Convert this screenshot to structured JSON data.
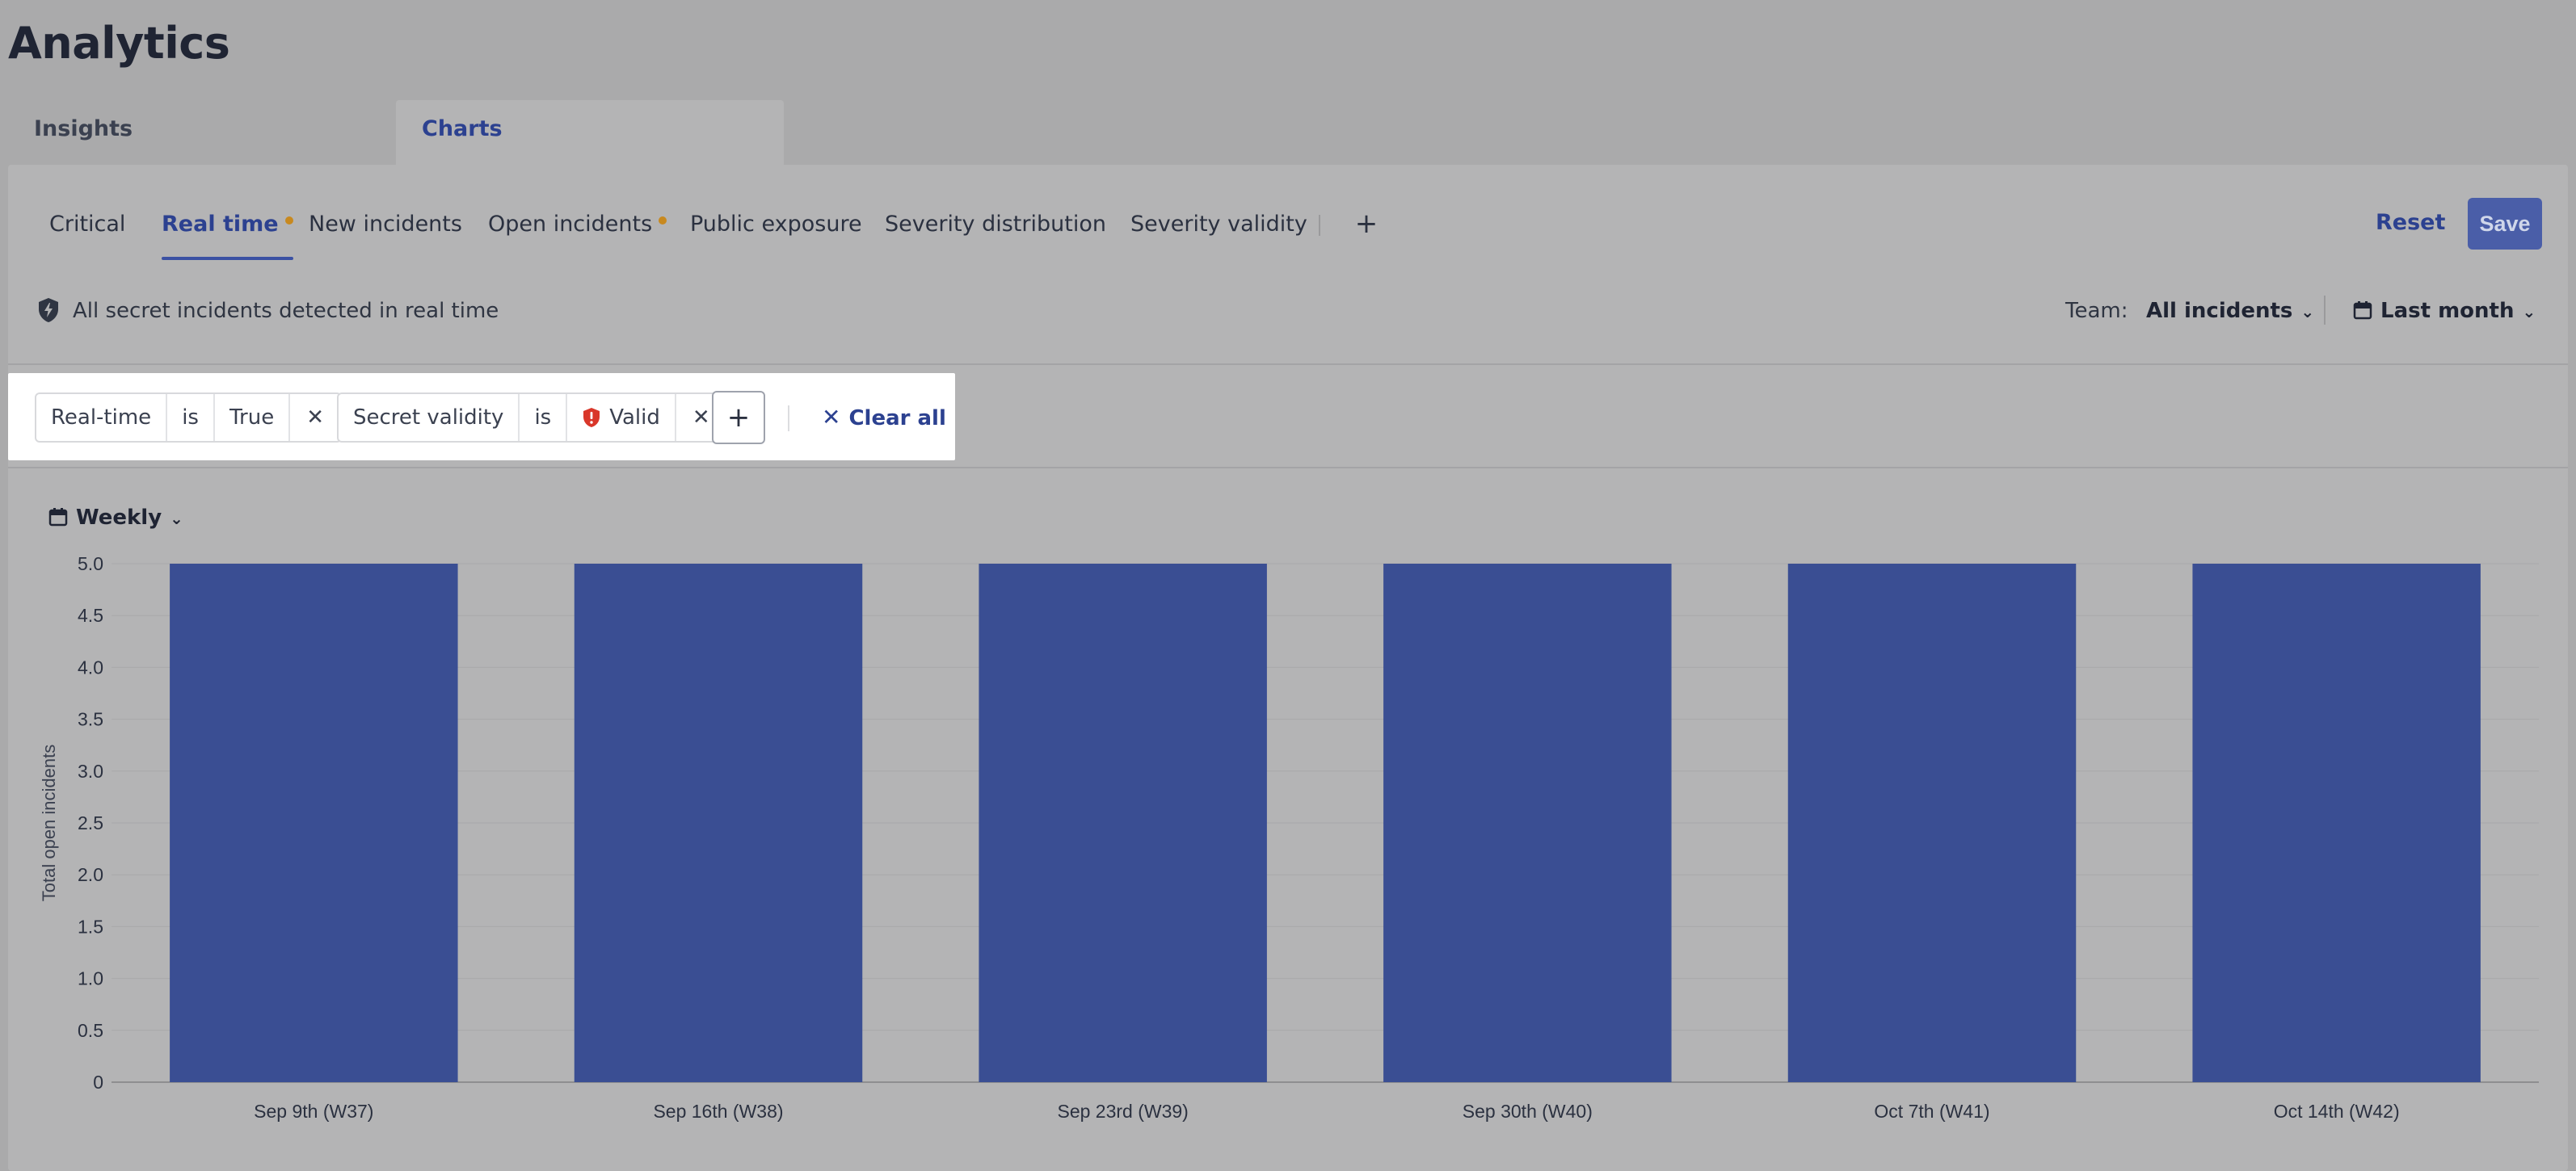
{
  "page": {
    "title": "Analytics"
  },
  "main_tabs": [
    {
      "label": "Insights",
      "active": false
    },
    {
      "label": "Charts",
      "active": true
    }
  ],
  "sub_tabs": [
    {
      "label": "Critical",
      "active": false,
      "dot": false
    },
    {
      "label": "Real time",
      "active": true,
      "dot": true
    },
    {
      "label": "New incidents",
      "active": false,
      "dot": false
    },
    {
      "label": "Open incidents",
      "active": false,
      "dot": true
    },
    {
      "label": "Public exposure",
      "active": false,
      "dot": false
    },
    {
      "label": "Severity distribution",
      "active": false,
      "dot": false
    },
    {
      "label": "Severity validity",
      "active": false,
      "dot": false
    }
  ],
  "actions": {
    "reset_label": "Reset",
    "save_label": "Save",
    "add_tab_label": "+"
  },
  "info": {
    "description": "All secret incidents detected in real time",
    "icon": "lightning-shield-icon",
    "team_label": "Team:",
    "team_value": "All incidents",
    "period_value": "Last month"
  },
  "filters": [
    {
      "field": "Real-time",
      "operator": "is",
      "value": "True",
      "value_icon": null
    },
    {
      "field": "Secret validity",
      "operator": "is",
      "value": "Valid",
      "value_icon": "shield-alert-icon"
    }
  ],
  "filter_actions": {
    "add_label": "+",
    "clear_all_label": "Clear all"
  },
  "interval": {
    "value": "Weekly"
  },
  "colors": {
    "bar": "#3a4e93",
    "accent": "#2c4190",
    "warning_dot": "#c8891f",
    "danger": "#d9372a"
  },
  "chart_data": {
    "type": "bar",
    "categories": [
      "Sep 9th (W37)",
      "Sep 16th (W38)",
      "Sep 23rd (W39)",
      "Sep 30th (W40)",
      "Oct 7th (W41)",
      "Oct 14th (W42)"
    ],
    "values": [
      5,
      5,
      5,
      5,
      5,
      5
    ],
    "title": "",
    "xlabel": "",
    "ylabel": "Total open incidents",
    "ylim": [
      0,
      5
    ],
    "yticks": [
      "0",
      "0.5",
      "1.0",
      "1.5",
      "2.0",
      "2.5",
      "3.0",
      "3.5",
      "4.0",
      "4.5",
      "5.0"
    ],
    "grid": true,
    "legend": "none"
  }
}
